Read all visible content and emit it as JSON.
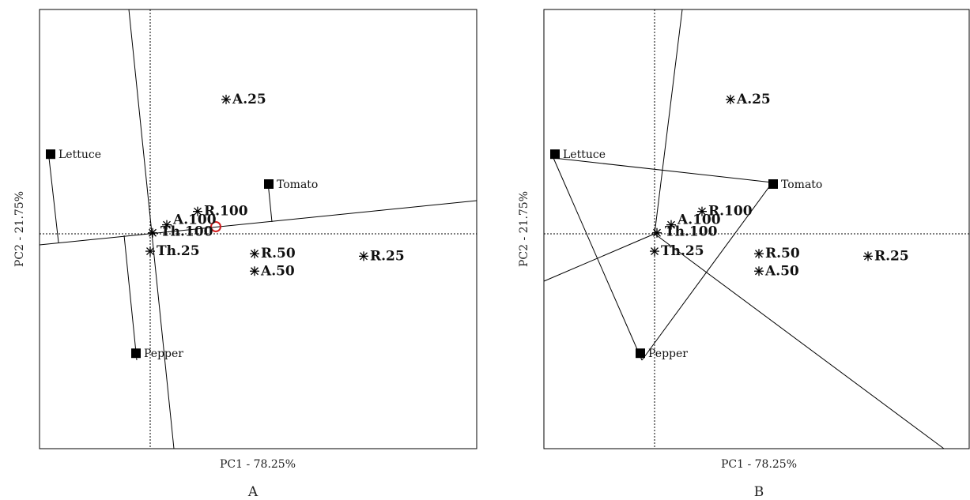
{
  "colors": {
    "ink": "#000000",
    "highlight": "#d22020"
  },
  "chart_data": [
    {
      "type": "scatter",
      "panel_label": "A",
      "xlabel": "PC1 - 78.25%",
      "ylabel": "PC2 - 21.75%",
      "view": "which-won-where perpendiculars",
      "environments": [
        {
          "name": "Lettuce",
          "x": -2.1,
          "y": 1.6
        },
        {
          "name": "Tomato",
          "x": 2.5,
          "y": 1.0
        },
        {
          "name": "Pepper",
          "x": -0.3,
          "y": -2.4
        }
      ],
      "genotypes": [
        {
          "name": "A.25",
          "x": 1.6,
          "y": 2.7
        },
        {
          "name": "R.100",
          "x": 1.0,
          "y": 0.45
        },
        {
          "name": "A.100",
          "x": 0.35,
          "y": 0.18
        },
        {
          "name": "Th.100",
          "x": 0.05,
          "y": 0.02
        },
        {
          "name": "Th.25",
          "x": 0.0,
          "y": -0.35
        },
        {
          "name": "R.50",
          "x": 2.2,
          "y": -0.4
        },
        {
          "name": "A.50",
          "x": 2.2,
          "y": -0.75
        },
        {
          "name": "R.25",
          "x": 4.5,
          "y": -0.45
        }
      ]
    },
    {
      "type": "scatter",
      "panel_label": "B",
      "xlabel": "PC1 - 78.25%",
      "ylabel": "PC2 - 21.75%",
      "view": "polygon",
      "environments": [
        {
          "name": "Lettuce",
          "x": -2.1,
          "y": 1.6
        },
        {
          "name": "Tomato",
          "x": 2.5,
          "y": 1.0
        },
        {
          "name": "Pepper",
          "x": -0.3,
          "y": -2.4
        }
      ],
      "genotypes": [
        {
          "name": "A.25",
          "x": 1.6,
          "y": 2.7
        },
        {
          "name": "R.100",
          "x": 1.0,
          "y": 0.45
        },
        {
          "name": "A.100",
          "x": 0.35,
          "y": 0.18
        },
        {
          "name": "Th.100",
          "x": 0.05,
          "y": 0.02
        },
        {
          "name": "Th.25",
          "x": 0.0,
          "y": -0.35
        },
        {
          "name": "R.50",
          "x": 2.2,
          "y": -0.4
        },
        {
          "name": "A.50",
          "x": 2.2,
          "y": -0.75
        },
        {
          "name": "R.25",
          "x": 4.5,
          "y": -0.45
        }
      ]
    }
  ]
}
